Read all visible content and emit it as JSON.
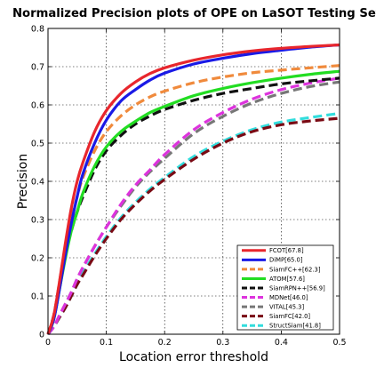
{
  "chart_data": {
    "type": "line",
    "title": "Normalized Precision plots of OPE on LaSOT Testing Set",
    "xlabel": "Location error threshold",
    "ylabel": "Precision",
    "xlim": [
      0,
      0.5
    ],
    "ylim": [
      0,
      0.8
    ],
    "xticks": [
      "0",
      "0.1",
      "0.2",
      "0.3",
      "0.4",
      "0.5"
    ],
    "yticks": [
      "0",
      "0.1",
      "0.2",
      "0.3",
      "0.4",
      "0.5",
      "0.6",
      "0.7",
      "0.8"
    ],
    "grid": true,
    "legend_position": "bottom-right",
    "x": [
      0,
      0.01,
      0.02,
      0.03,
      0.04,
      0.05,
      0.06,
      0.08,
      0.1,
      0.125,
      0.15,
      0.175,
      0.2,
      0.25,
      0.3,
      0.35,
      0.4,
      0.45,
      0.5
    ],
    "series": [
      {
        "name": "FCOT[67.8]",
        "color": "#e8262d",
        "dash": "solid",
        "values": [
          0,
          0.05,
          0.14,
          0.24,
          0.33,
          0.4,
          0.45,
          0.53,
          0.585,
          0.63,
          0.66,
          0.682,
          0.697,
          0.717,
          0.731,
          0.741,
          0.748,
          0.753,
          0.757
        ]
      },
      {
        "name": "DiMP[65.0]",
        "color": "#1a1ae6",
        "dash": "solid",
        "values": [
          0,
          0.04,
          0.12,
          0.21,
          0.29,
          0.36,
          0.42,
          0.5,
          0.56,
          0.61,
          0.64,
          0.665,
          0.683,
          0.707,
          0.722,
          0.734,
          0.743,
          0.751,
          0.757
        ]
      },
      {
        "name": "SiamFC++[62.3]",
        "color": "#f08a3c",
        "dash": "dash",
        "values": [
          0,
          0.05,
          0.14,
          0.23,
          0.3,
          0.36,
          0.41,
          0.48,
          0.53,
          0.571,
          0.6,
          0.621,
          0.636,
          0.658,
          0.673,
          0.684,
          0.691,
          0.697,
          0.703
        ]
      },
      {
        "name": "ATOM[57.6]",
        "color": "#22dd22",
        "dash": "solid",
        "values": [
          0,
          0.04,
          0.12,
          0.2,
          0.27,
          0.32,
          0.37,
          0.44,
          0.49,
          0.53,
          0.557,
          0.58,
          0.596,
          0.624,
          0.643,
          0.658,
          0.67,
          0.68,
          0.688
        ]
      },
      {
        "name": "SiamRPN++[56.9]",
        "color": "#111111",
        "dash": "dash",
        "values": [
          0,
          0.05,
          0.13,
          0.21,
          0.27,
          0.32,
          0.36,
          0.43,
          0.48,
          0.52,
          0.55,
          0.571,
          0.588,
          0.612,
          0.63,
          0.643,
          0.655,
          0.663,
          0.67
        ]
      },
      {
        "name": "MDNet[46.0]",
        "color": "#dd33dd",
        "dash": "dash",
        "values": [
          0,
          0.02,
          0.05,
          0.08,
          0.11,
          0.145,
          0.175,
          0.23,
          0.28,
          0.34,
          0.39,
          0.43,
          0.47,
          0.535,
          0.58,
          0.615,
          0.64,
          0.657,
          0.67
        ]
      },
      {
        "name": "VITAL[45.3]",
        "color": "#777777",
        "dash": "dash",
        "values": [
          0,
          0.02,
          0.05,
          0.08,
          0.11,
          0.145,
          0.175,
          0.23,
          0.28,
          0.335,
          0.385,
          0.425,
          0.46,
          0.525,
          0.57,
          0.605,
          0.63,
          0.648,
          0.66
        ]
      },
      {
        "name": "SiamFC[42.0]",
        "color": "#7a0a14",
        "dash": "dash",
        "values": [
          0,
          0.02,
          0.045,
          0.07,
          0.1,
          0.13,
          0.155,
          0.205,
          0.25,
          0.3,
          0.34,
          0.375,
          0.405,
          0.458,
          0.5,
          0.53,
          0.548,
          0.558,
          0.565
        ]
      },
      {
        "name": "StructSiam[41.8]",
        "color": "#33dddd",
        "dash": "dash",
        "values": [
          0,
          0.02,
          0.045,
          0.07,
          0.1,
          0.13,
          0.16,
          0.21,
          0.255,
          0.305,
          0.345,
          0.38,
          0.41,
          0.465,
          0.505,
          0.535,
          0.555,
          0.567,
          0.578
        ]
      }
    ]
  }
}
